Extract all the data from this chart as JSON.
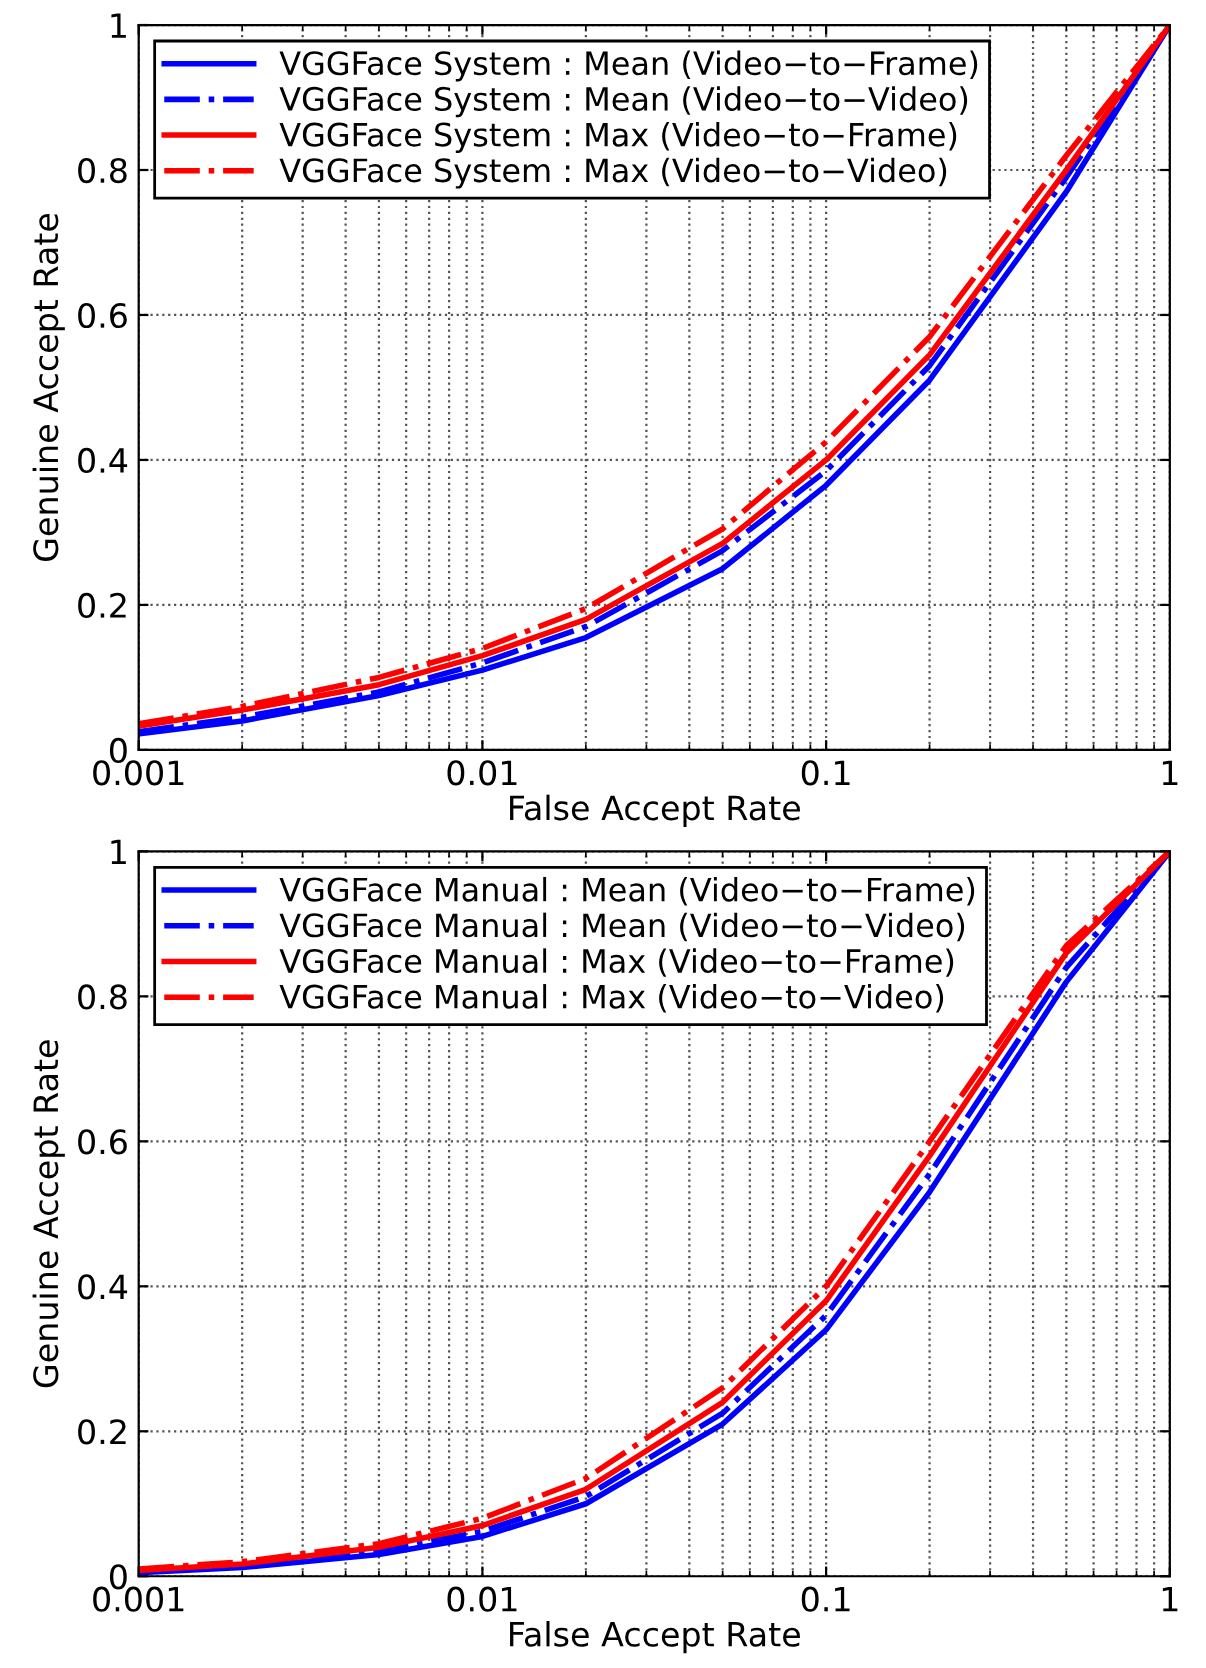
{
  "chart_data": [
    {
      "type": "line",
      "xlabel": "False Accept Rate",
      "ylabel": "Genuine Accept Rate",
      "log": "x",
      "grid": true,
      "legend": "top left",
      "x": [
        0.001,
        0.002,
        0.005,
        0.01,
        0.02,
        0.05,
        0.1,
        0.2,
        0.5,
        1
      ],
      "xlim": [
        0.001,
        1
      ],
      "xticks": [
        0.001,
        0.01,
        0.1,
        1
      ],
      "ylim": [
        0,
        1
      ],
      "yticks": [
        0,
        0.2,
        0.4,
        0.6,
        0.8,
        1
      ],
      "series": [
        {
          "name": "VGGFace System : Mean (Video−to−Frame)",
          "color": "#0000ff",
          "line_style": "solid",
          "values": [
            0.022,
            0.04,
            0.075,
            0.11,
            0.155,
            0.25,
            0.365,
            0.51,
            0.77,
            1
          ]
        },
        {
          "name": "VGGFace System : Mean (Video−to−Video)",
          "color": "#0000ff",
          "line_style": "dashdot",
          "values": [
            0.025,
            0.045,
            0.08,
            0.12,
            0.17,
            0.275,
            0.385,
            0.53,
            0.79,
            1
          ]
        },
        {
          "name": "VGGFace System : Max (Video−to−Frame)",
          "color": "#ff0000",
          "line_style": "solid",
          "values": [
            0.033,
            0.055,
            0.09,
            0.13,
            0.18,
            0.285,
            0.4,
            0.545,
            0.8,
            1
          ]
        },
        {
          "name": "VGGFace System : Max (Video−to−Video)",
          "color": "#ff0000",
          "line_style": "dashdot",
          "values": [
            0.036,
            0.06,
            0.1,
            0.14,
            0.195,
            0.305,
            0.425,
            0.57,
            0.82,
            1
          ]
        }
      ]
    },
    {
      "type": "line",
      "xlabel": "False Accept Rate",
      "ylabel": "Genuine Accept Rate",
      "log": "x",
      "grid": true,
      "legend": "top left",
      "x": [
        0.001,
        0.002,
        0.005,
        0.01,
        0.02,
        0.05,
        0.1,
        0.2,
        0.5,
        1
      ],
      "xlim": [
        0.001,
        1
      ],
      "xticks": [
        0.001,
        0.01,
        0.1,
        1
      ],
      "ylim": [
        0,
        1
      ],
      "yticks": [
        0,
        0.2,
        0.4,
        0.6,
        0.8,
        1
      ],
      "series": [
        {
          "name": "VGGFace Manual : Mean (Video−to−Frame)",
          "color": "#0000ff",
          "line_style": "solid",
          "values": [
            0.005,
            0.012,
            0.03,
            0.055,
            0.1,
            0.21,
            0.34,
            0.53,
            0.82,
            1
          ]
        },
        {
          "name": "VGGFace Manual : Mean (Video−to−Video)",
          "color": "#0000ff",
          "line_style": "dashdot",
          "values": [
            0.007,
            0.015,
            0.035,
            0.062,
            0.11,
            0.225,
            0.36,
            0.555,
            0.84,
            1
          ]
        },
        {
          "name": "VGGFace Manual : Max (Video−to−Frame)",
          "color": "#ff0000",
          "line_style": "solid",
          "values": [
            0.008,
            0.017,
            0.04,
            0.07,
            0.12,
            0.24,
            0.38,
            0.58,
            0.86,
            1
          ]
        },
        {
          "name": "VGGFace Manual : Max (Video−to−Video)",
          "color": "#ff0000",
          "line_style": "dashdot",
          "values": [
            0.01,
            0.02,
            0.045,
            0.08,
            0.135,
            0.26,
            0.4,
            0.6,
            0.87,
            1
          ]
        }
      ]
    }
  ]
}
